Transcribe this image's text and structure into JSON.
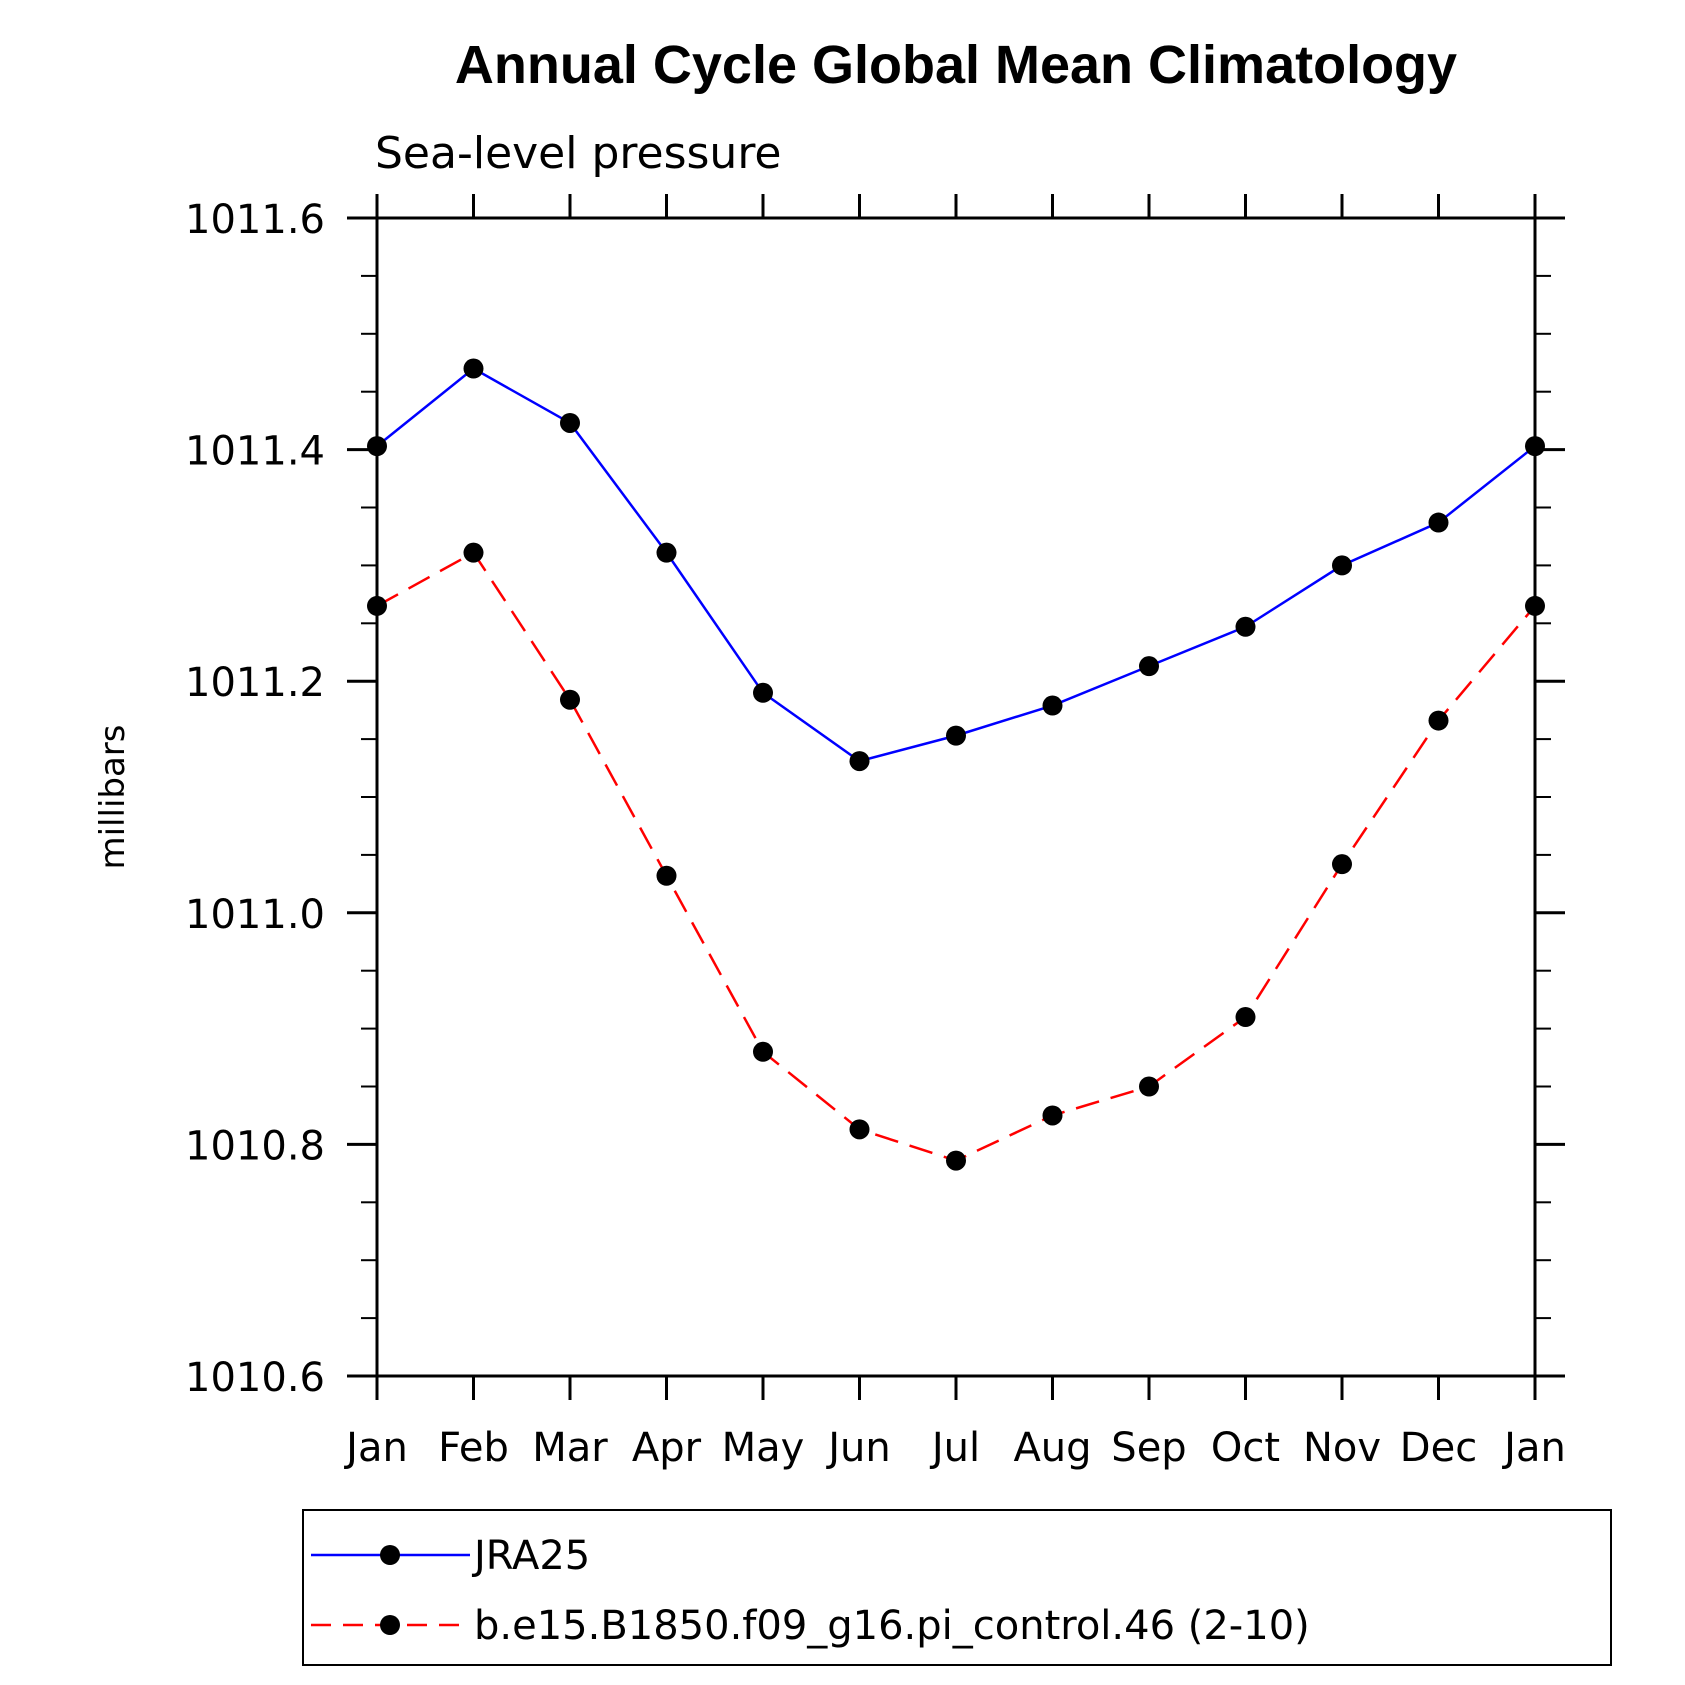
{
  "chart_data": {
    "type": "line",
    "title": "Annual Cycle Global Mean Climatology",
    "subtitle": "Sea-level pressure",
    "ylabel": "millibars",
    "xlabel": "",
    "categories": [
      "Jan",
      "Feb",
      "Mar",
      "Apr",
      "May",
      "Jun",
      "Jul",
      "Aug",
      "Sep",
      "Oct",
      "Nov",
      "Dec",
      "Jan"
    ],
    "ylim": [
      1010.6,
      1011.6
    ],
    "yticks": [
      "1010.6",
      "1010.8",
      "1011.0",
      "1011.2",
      "1011.4",
      "1011.6"
    ],
    "ytick_values": [
      1010.6,
      1010.8,
      1011.0,
      1011.2,
      1011.4,
      1011.6
    ],
    "grid": false,
    "legend_position": "bottom",
    "series": [
      {
        "name": "JRA25",
        "color": "#0000ff",
        "line_style": "solid",
        "marker": "filled-circle",
        "values": [
          1011.403,
          1011.47,
          1011.423,
          1011.311,
          1011.19,
          1011.131,
          1011.153,
          1011.179,
          1011.213,
          1011.247,
          1011.3,
          1011.337,
          1011.403
        ]
      },
      {
        "name": "b.e15.B1850.f09_g16.pi_control.46 (2-10)",
        "color": "#ff0000",
        "line_style": "dashed",
        "marker": "filled-circle",
        "values": [
          1011.265,
          1011.311,
          1011.184,
          1011.032,
          1010.88,
          1010.813,
          1010.786,
          1010.825,
          1010.85,
          1010.91,
          1011.042,
          1011.166,
          1011.265
        ]
      }
    ]
  }
}
